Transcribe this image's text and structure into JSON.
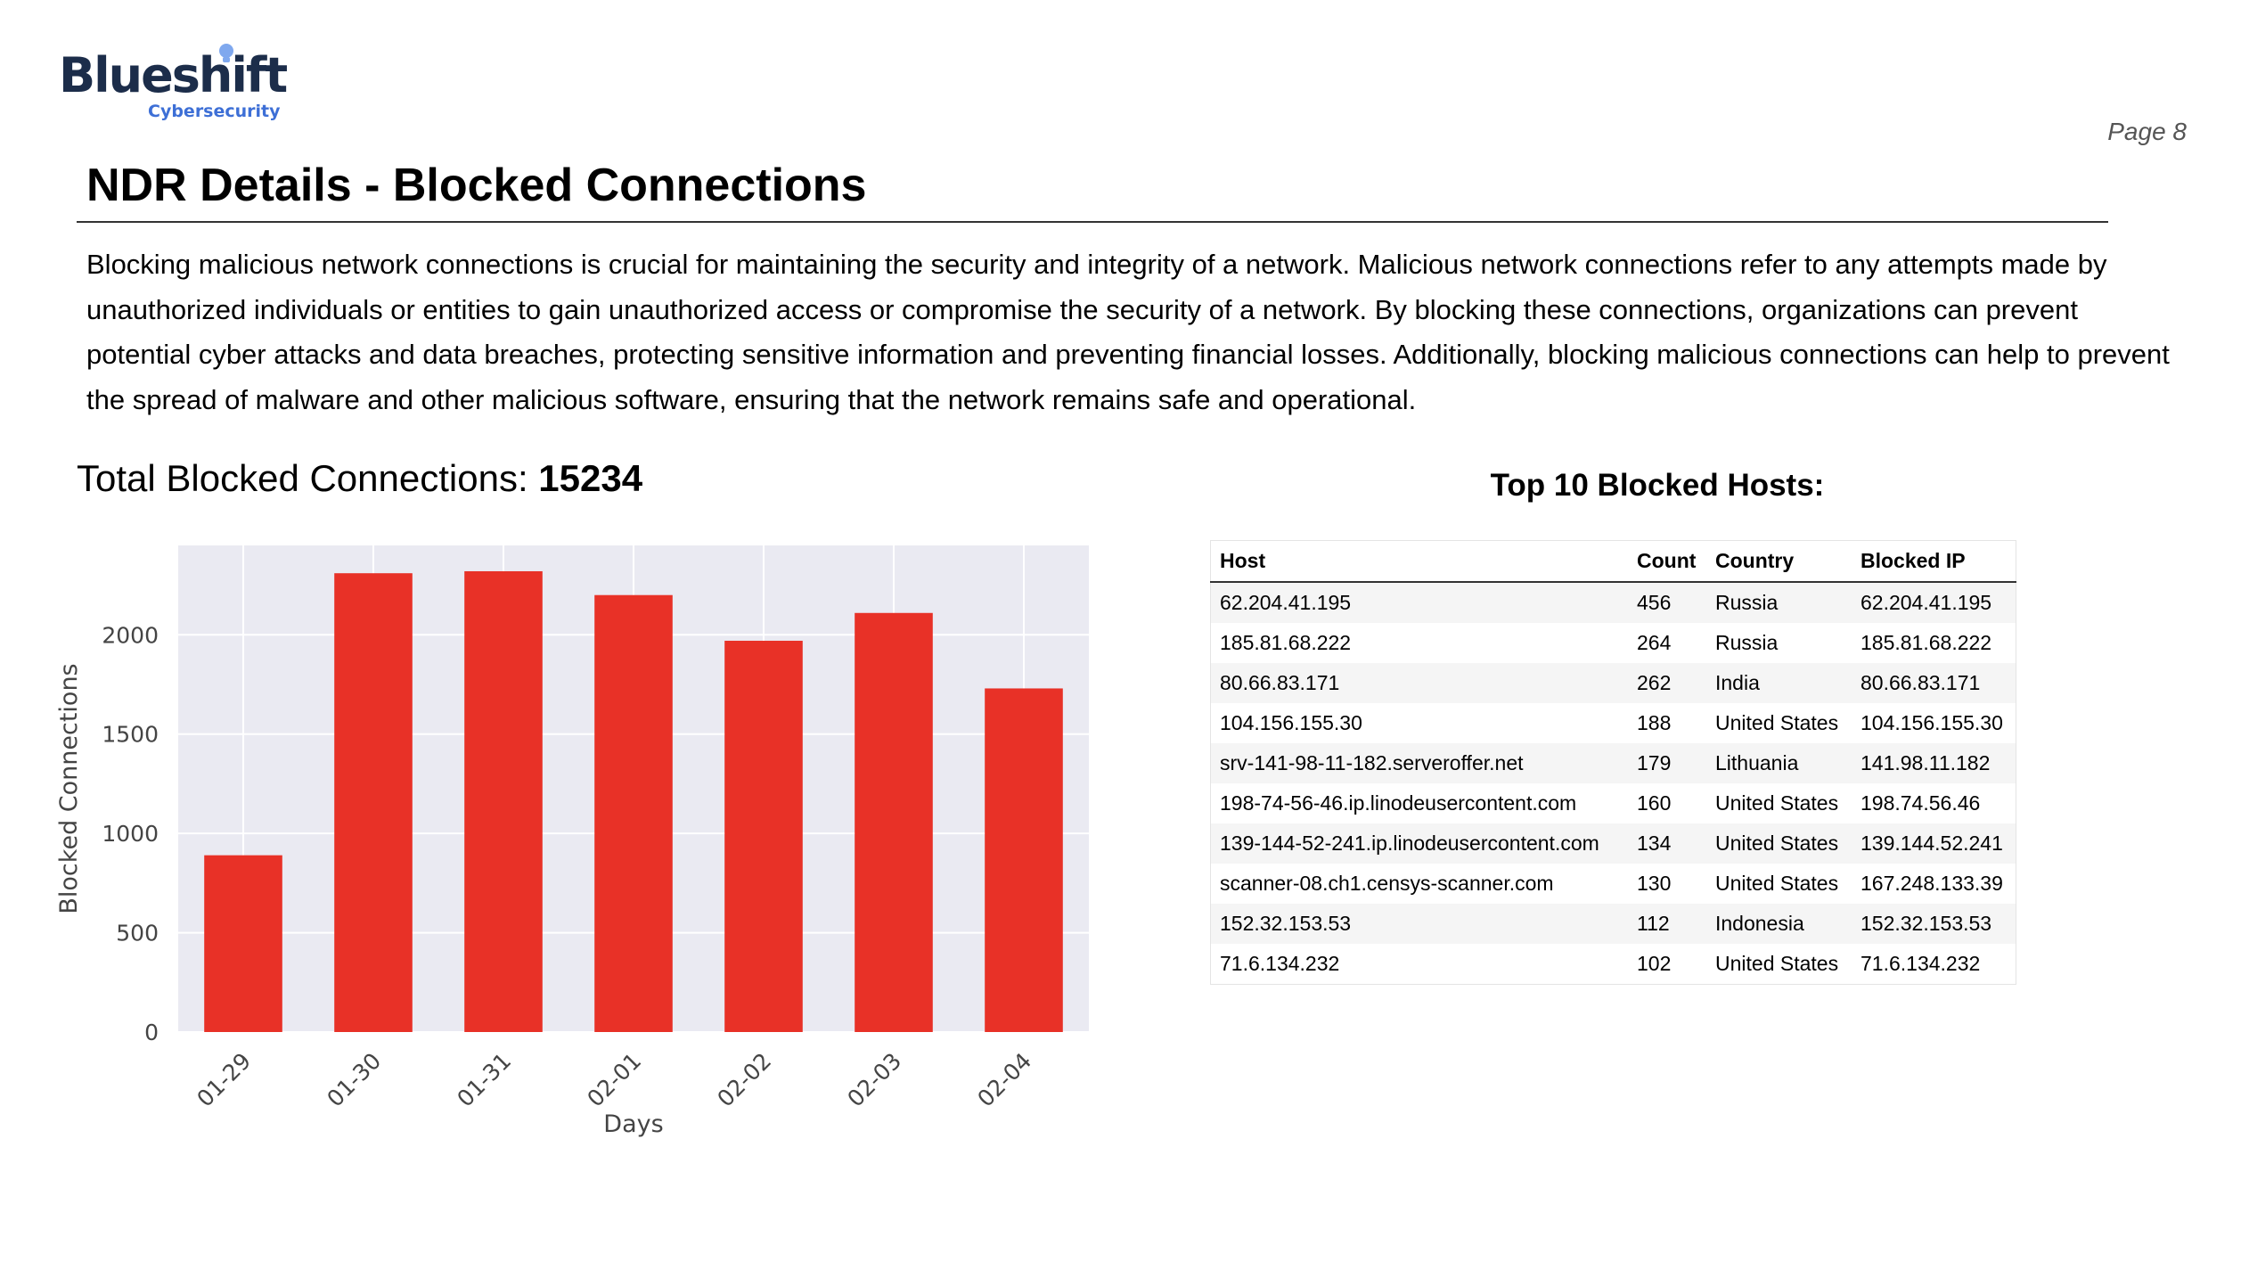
{
  "logo": {
    "name": "Blueshift",
    "sub": "Cybersecurity"
  },
  "page": {
    "label": "Page 8"
  },
  "title": "NDR Details - Blocked Connections",
  "intro": "Blocking malicious network connections is crucial for maintaining the security and integrity of a network. Malicious network connections refer to any attempts made by unauthorized individuals or entities to gain unauthorized access or compromise the security of a network. By blocking these connections, organizations can prevent potential cyber attacks and data breaches, protecting sensitive information and preventing financial losses. Additionally, blocking malicious connections can help to prevent the spread of malware and other malicious software, ensuring that the network remains safe and operational.",
  "total": {
    "label": "Total Blocked Connections:",
    "value": "15234"
  },
  "table": {
    "title": "Top 10 Blocked Hosts:",
    "headers": {
      "host": "Host",
      "count": "Count",
      "country": "Country",
      "ip": "Blocked IP"
    },
    "rows": [
      {
        "host": "62.204.41.195",
        "count": "456",
        "country": "Russia",
        "ip": "62.204.41.195"
      },
      {
        "host": "185.81.68.222",
        "count": "264",
        "country": "Russia",
        "ip": "185.81.68.222"
      },
      {
        "host": "80.66.83.171",
        "count": "262",
        "country": "India",
        "ip": "80.66.83.171"
      },
      {
        "host": "104.156.155.30",
        "count": "188",
        "country": "United States",
        "ip": "104.156.155.30"
      },
      {
        "host": "srv-141-98-11-182.serveroffer.net",
        "count": "179",
        "country": "Lithuania",
        "ip": "141.98.11.182"
      },
      {
        "host": "198-74-56-46.ip.linodeusercontent.com",
        "count": "160",
        "country": "United States",
        "ip": "198.74.56.46"
      },
      {
        "host": "139-144-52-241.ip.linodeusercontent.com",
        "count": "134",
        "country": "United States",
        "ip": "139.144.52.241"
      },
      {
        "host": "scanner-08.ch1.censys-scanner.com",
        "count": "130",
        "country": "United States",
        "ip": "167.248.133.39"
      },
      {
        "host": "152.32.153.53",
        "count": "112",
        "country": "Indonesia",
        "ip": "152.32.153.53"
      },
      {
        "host": "71.6.134.232",
        "count": "102",
        "country": "United States",
        "ip": "71.6.134.232"
      }
    ]
  },
  "colors": {
    "bar": "#e83127",
    "plot_bg": "#eaeaf2",
    "grid": "#ffffff",
    "brand": "#1c2d4a",
    "brand_accent": "#3d6fd6"
  },
  "chart_data": {
    "type": "bar",
    "categories": [
      "01-29",
      "01-30",
      "01-31",
      "02-01",
      "02-02",
      "02-03",
      "02-04"
    ],
    "values": [
      890,
      2310,
      2320,
      2200,
      1970,
      2110,
      1730
    ],
    "xlabel": "Days",
    "ylabel": "Blocked Connections",
    "ylim": [
      0,
      2450
    ],
    "yticks": [
      0,
      500,
      1000,
      1500,
      2000
    ],
    "grid": true
  }
}
